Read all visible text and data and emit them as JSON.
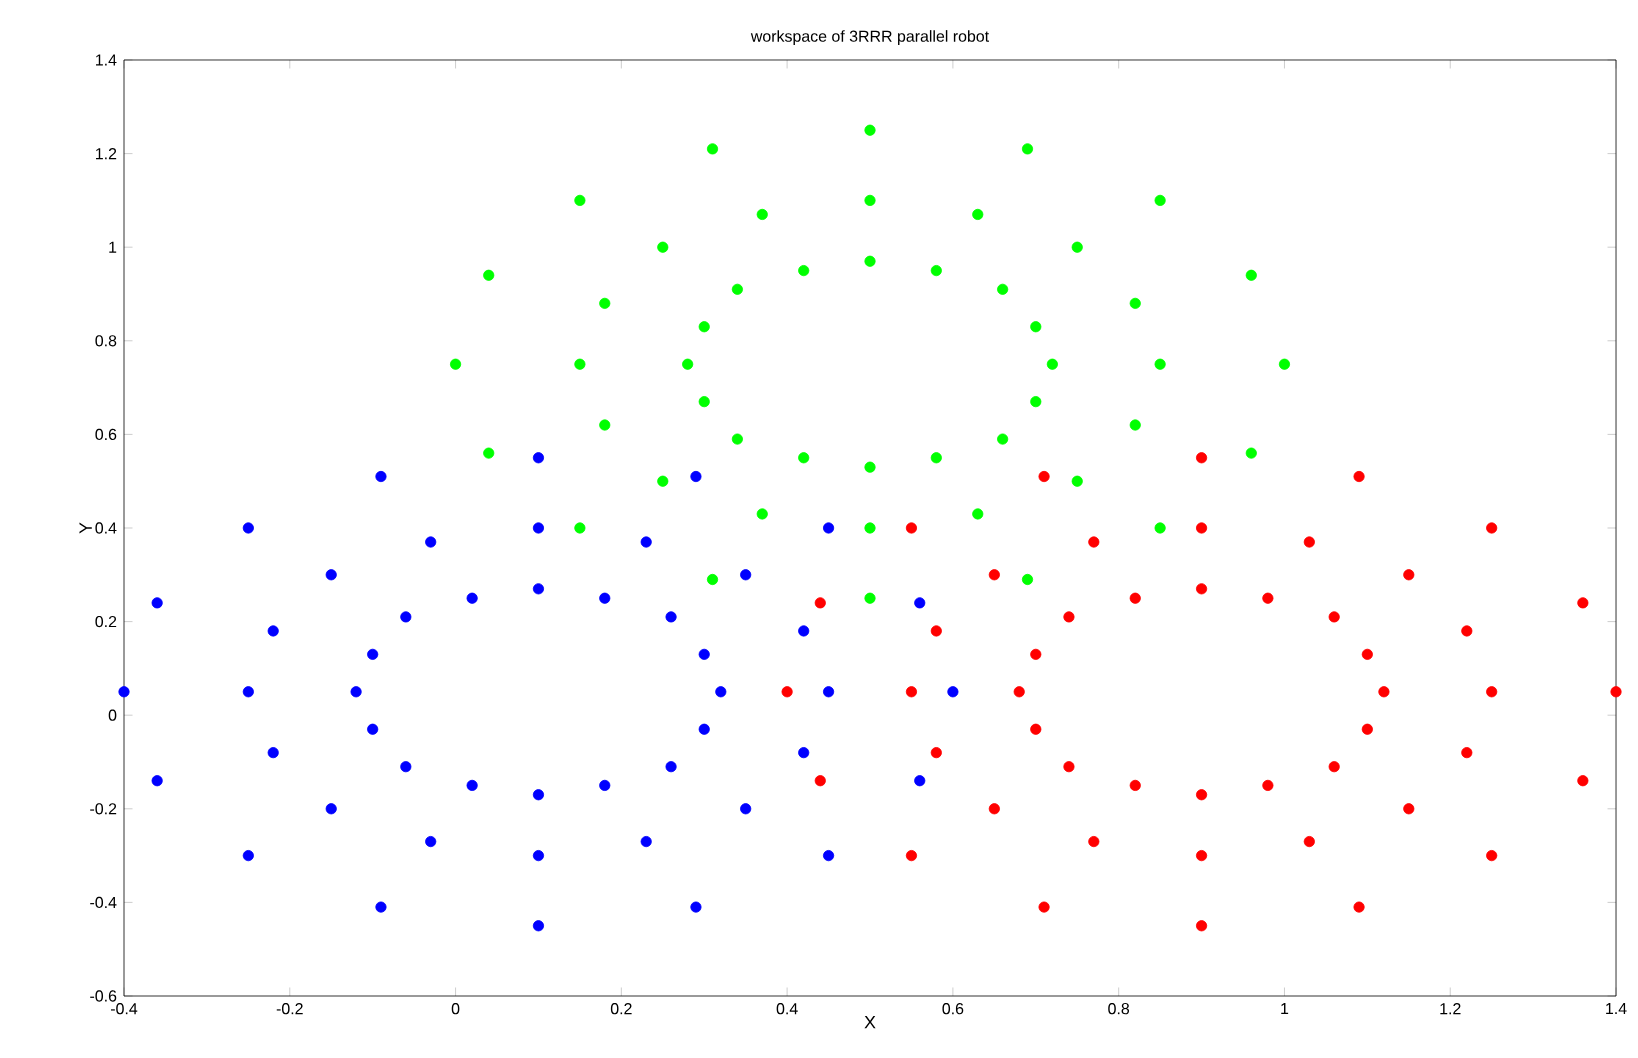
{
  "chart_data": {
    "type": "scatter",
    "title": "workspace of 3RRR parallel robot",
    "xlabel": "X",
    "ylabel": "Y",
    "xlim": [
      -0.4,
      1.4
    ],
    "ylim": [
      -0.6,
      1.4
    ],
    "xticks": [
      {
        "value": -0.4,
        "label": "-0.4"
      },
      {
        "value": -0.2,
        "label": "-0.2"
      },
      {
        "value": 0,
        "label": "0"
      },
      {
        "value": 0.2,
        "label": "0.2"
      },
      {
        "value": 0.4,
        "label": "0.4"
      },
      {
        "value": 0.6,
        "label": "0.6"
      },
      {
        "value": 0.8,
        "label": "0.8"
      },
      {
        "value": 1,
        "label": "1"
      },
      {
        "value": 1.2,
        "label": "1.2"
      },
      {
        "value": 1.4,
        "label": "1.4"
      }
    ],
    "yticks": [
      {
        "value": -0.6,
        "label": "-0.6"
      },
      {
        "value": -0.4,
        "label": "-0.4"
      },
      {
        "value": -0.2,
        "label": "-0.2"
      },
      {
        "value": 0,
        "label": "0"
      },
      {
        "value": 0.2,
        "label": "0.2"
      },
      {
        "value": 0.4,
        "label": "0.4"
      },
      {
        "value": 0.6,
        "label": "0.6"
      },
      {
        "value": 0.8,
        "label": "0.8"
      },
      {
        "value": 1,
        "label": "1"
      },
      {
        "value": 1.2,
        "label": "1.2"
      },
      {
        "value": 1.4,
        "label": "1.4"
      }
    ],
    "marker": "circle",
    "series": [
      {
        "color": "#0000ff",
        "x": [
          0.6,
          0.56,
          0.45,
          0.29,
          0.1,
          -0.09,
          -0.25,
          -0.36,
          -0.4,
          -0.36,
          -0.25,
          -0.09,
          0.1,
          0.29,
          0.45,
          0.56,
          0.45,
          0.42,
          0.35,
          0.23,
          0.1,
          -0.03,
          -0.15,
          -0.22,
          -0.25,
          -0.22,
          -0.15,
          -0.03,
          0.1,
          0.23,
          0.35,
          0.42,
          0.32,
          0.3,
          0.26,
          0.18,
          0.1,
          0.02,
          -0.06,
          -0.1,
          -0.12,
          -0.1,
          -0.06,
          0.02,
          0.1,
          0.18,
          0.26,
          0.3
        ],
        "values": [
          0.05,
          0.24,
          0.4,
          0.51,
          0.55,
          0.51,
          0.4,
          0.24,
          0.05,
          -0.14,
          -0.3,
          -0.41,
          -0.45,
          -0.41,
          -0.3,
          -0.14,
          0.05,
          0.18,
          0.3,
          0.37,
          0.4,
          0.37,
          0.3,
          0.18,
          0.05,
          -0.08,
          -0.2,
          -0.27,
          -0.3,
          -0.27,
          -0.2,
          -0.08,
          0.05,
          0.13,
          0.21,
          0.25,
          0.27,
          0.25,
          0.21,
          0.13,
          0.05,
          -0.03,
          -0.11,
          -0.15,
          -0.17,
          -0.15,
          -0.11,
          -0.03
        ]
      },
      {
        "color": "#00ff00",
        "x": [
          1.0,
          0.96,
          0.85,
          0.69,
          0.5,
          0.31,
          0.15,
          0.04,
          0.0,
          0.04,
          0.15,
          0.31,
          0.5,
          0.69,
          0.85,
          0.96,
          0.85,
          0.82,
          0.75,
          0.63,
          0.5,
          0.37,
          0.25,
          0.18,
          0.15,
          0.18,
          0.25,
          0.37,
          0.5,
          0.63,
          0.75,
          0.82,
          0.72,
          0.7,
          0.66,
          0.58,
          0.5,
          0.42,
          0.34,
          0.3,
          0.28,
          0.3,
          0.34,
          0.42,
          0.5,
          0.58,
          0.66,
          0.7
        ],
        "values": [
          0.75,
          0.94,
          1.1,
          1.21,
          1.25,
          1.21,
          1.1,
          0.94,
          0.75,
          0.56,
          0.4,
          0.29,
          0.25,
          0.29,
          0.4,
          0.56,
          0.75,
          0.88,
          1.0,
          1.07,
          1.1,
          1.07,
          1.0,
          0.88,
          0.75,
          0.62,
          0.5,
          0.43,
          0.4,
          0.43,
          0.5,
          0.62,
          0.75,
          0.83,
          0.91,
          0.95,
          0.97,
          0.95,
          0.91,
          0.83,
          0.75,
          0.67,
          0.59,
          0.55,
          0.53,
          0.55,
          0.59,
          0.67
        ]
      },
      {
        "color": "#ff0000",
        "x": [
          1.4,
          1.36,
          1.25,
          1.09,
          0.9,
          0.71,
          0.55,
          0.44,
          0.4,
          0.44,
          0.55,
          0.71,
          0.9,
          1.09,
          1.25,
          1.36,
          1.25,
          1.22,
          1.15,
          1.03,
          0.9,
          0.77,
          0.65,
          0.58,
          0.55,
          0.58,
          0.65,
          0.77,
          0.9,
          1.03,
          1.15,
          1.22,
          1.12,
          1.1,
          1.06,
          0.98,
          0.9,
          0.82,
          0.74,
          0.7,
          0.68,
          0.7,
          0.74,
          0.82,
          0.9,
          0.98,
          1.06,
          1.1
        ],
        "values": [
          0.05,
          0.24,
          0.4,
          0.51,
          0.55,
          0.51,
          0.4,
          0.24,
          0.05,
          -0.14,
          -0.3,
          -0.41,
          -0.45,
          -0.41,
          -0.3,
          -0.14,
          0.05,
          0.18,
          0.3,
          0.37,
          0.4,
          0.37,
          0.3,
          0.18,
          0.05,
          -0.08,
          -0.2,
          -0.27,
          -0.3,
          -0.27,
          -0.2,
          -0.08,
          0.05,
          0.13,
          0.21,
          0.25,
          0.27,
          0.25,
          0.21,
          0.13,
          0.05,
          -0.03,
          -0.11,
          -0.15,
          -0.17,
          -0.15,
          -0.11,
          -0.03
        ]
      }
    ]
  }
}
